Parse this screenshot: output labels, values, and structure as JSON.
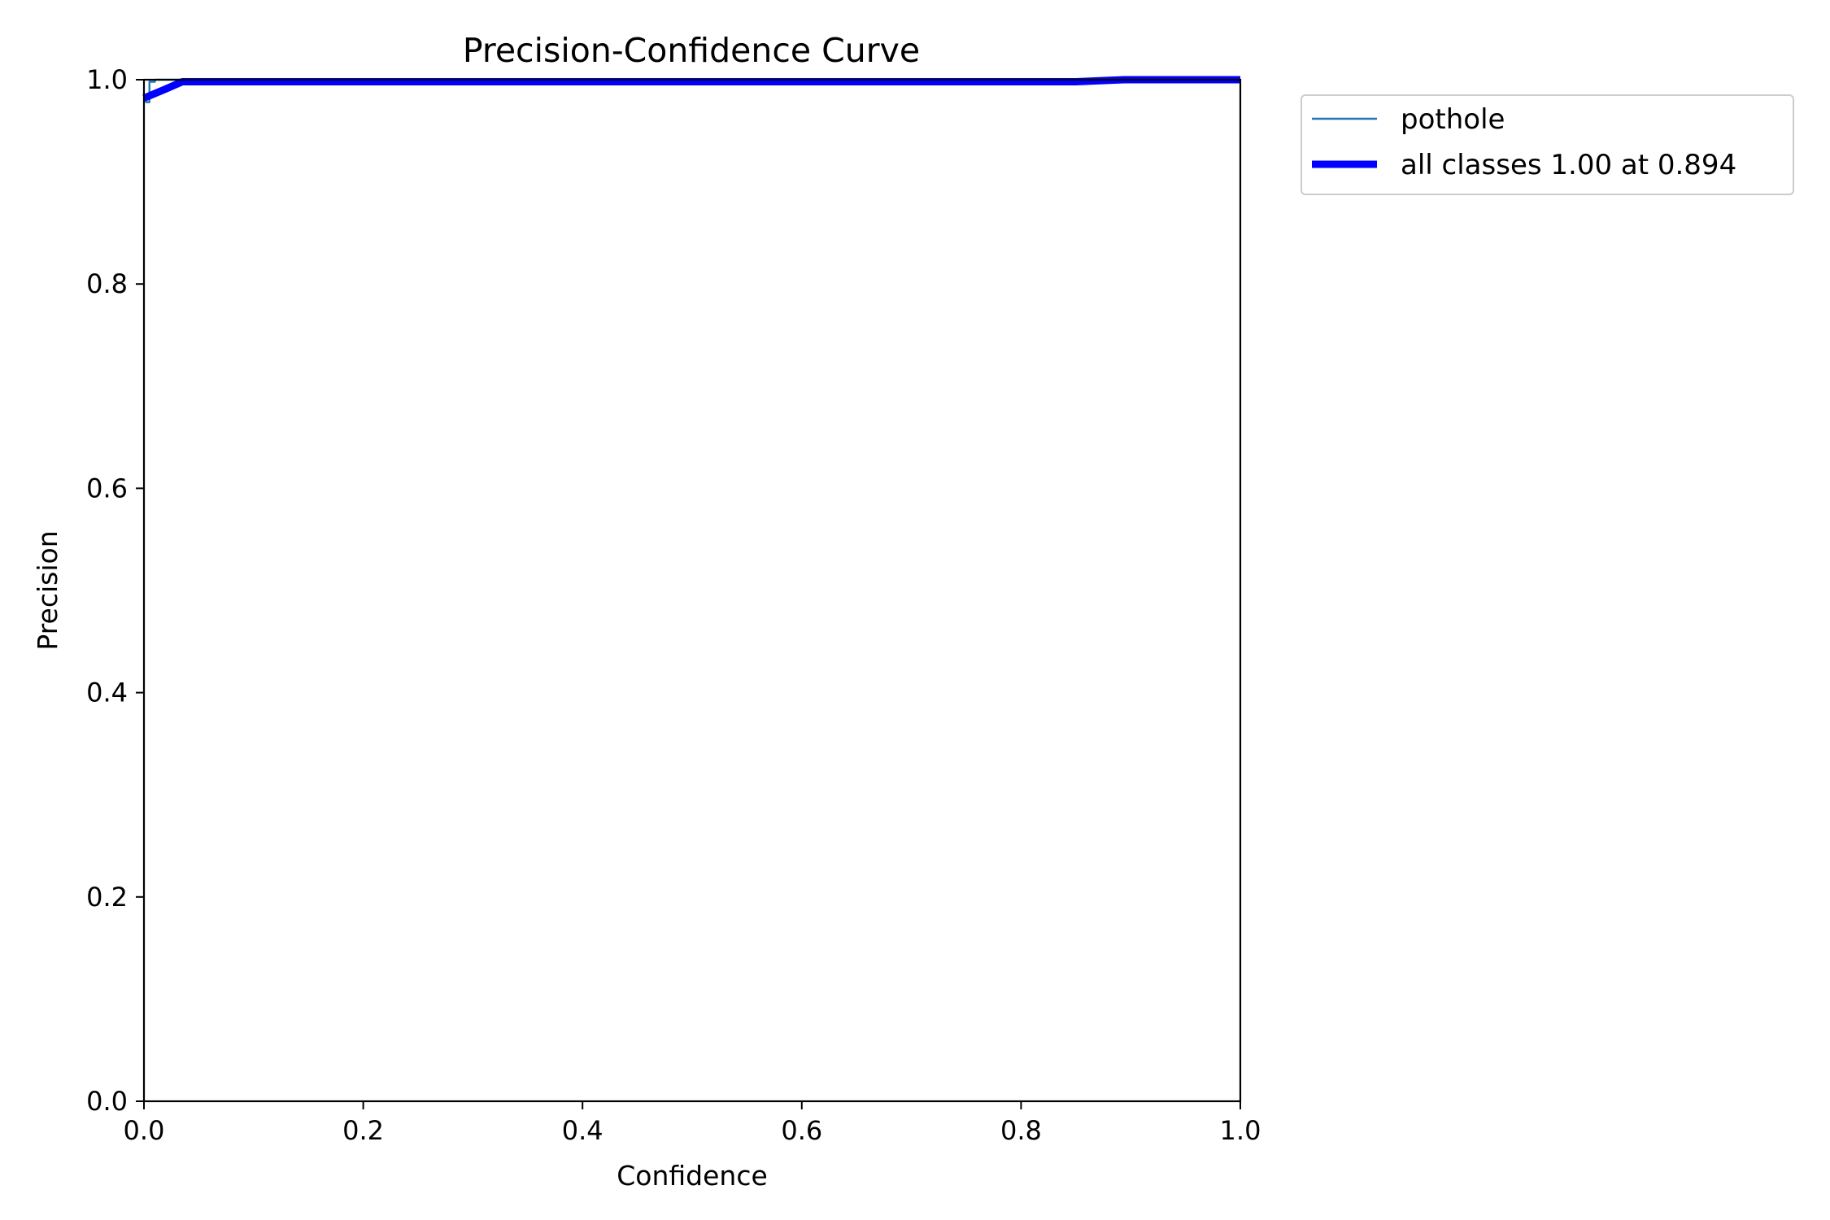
{
  "chart_data": {
    "type": "line",
    "title": "Precision-Confidence Curve",
    "xlabel": "Confidence",
    "ylabel": "Precision",
    "xlim": [
      0.0,
      1.0
    ],
    "ylim": [
      0.0,
      1.0
    ],
    "xticks": [
      "0.0",
      "0.2",
      "0.4",
      "0.6",
      "0.8",
      "1.0"
    ],
    "yticks": [
      "0.0",
      "0.2",
      "0.4",
      "0.6",
      "0.8",
      "1.0"
    ],
    "grid": false,
    "legend_placement": "outside upper right",
    "series": [
      {
        "name": "pothole",
        "color": "#1f77b4",
        "style": "thin",
        "x": [
          0.0,
          0.002,
          0.005,
          0.005,
          0.01,
          0.01,
          0.04,
          0.2,
          0.4,
          0.6,
          0.8,
          0.9,
          1.0
        ],
        "y": [
          0.985,
          0.978,
          0.978,
          0.998,
          0.998,
          1.0,
          1.0,
          1.0,
          1.0,
          1.0,
          1.0,
          1.0,
          1.0
        ]
      },
      {
        "name": "all classes 1.00 at 0.894",
        "color": "#0000ff",
        "style": "thick",
        "x": [
          0.0,
          0.02,
          0.035,
          0.1,
          0.3,
          0.5,
          0.7,
          0.85,
          0.894,
          1.0
        ],
        "y": [
          0.982,
          0.991,
          0.998,
          0.998,
          0.998,
          0.998,
          0.998,
          0.998,
          1.0,
          1.0
        ]
      }
    ]
  }
}
